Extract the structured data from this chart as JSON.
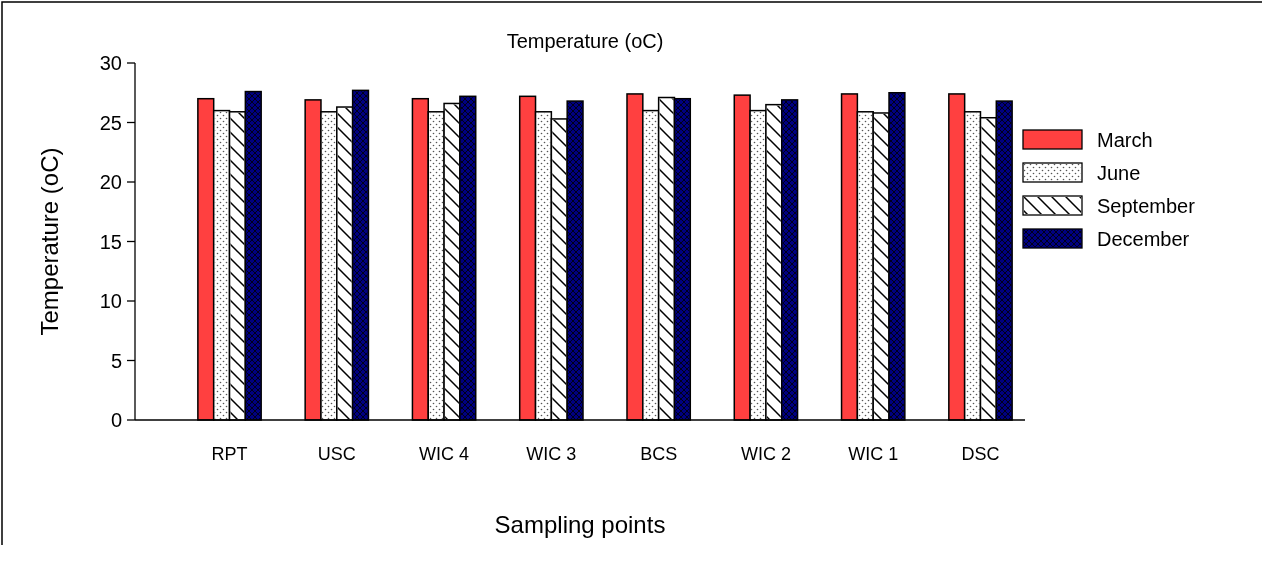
{
  "chart_data": {
    "type": "bar",
    "title": "Temperature (oC)",
    "xlabel": "Sampling points",
    "ylabel": "Temperature (oC)",
    "categories": [
      "RPT",
      "USC",
      "WIC 4",
      "WIC 3",
      "BCS",
      "WIC 2",
      "WIC 1",
      "DSC"
    ],
    "series": [
      {
        "name": "March",
        "color": "#ff4040",
        "values": [
          27.0,
          26.9,
          27.0,
          27.2,
          27.4,
          27.3,
          27.4,
          27.4
        ]
      },
      {
        "name": "June",
        "color": "#ffffff",
        "values": [
          26.0,
          25.9,
          25.9,
          25.9,
          26.0,
          26.0,
          25.9,
          25.9
        ]
      },
      {
        "name": "September",
        "color": "#ffffff",
        "values": [
          25.9,
          26.3,
          26.6,
          25.3,
          27.1,
          26.5,
          25.8,
          25.4
        ]
      },
      {
        "name": "December",
        "color": "#000080",
        "values": [
          27.6,
          27.7,
          27.2,
          26.8,
          27.0,
          26.9,
          27.5,
          26.8
        ]
      }
    ],
    "ylim": [
      0,
      30
    ],
    "yticks": [
      0,
      5,
      10,
      15,
      20,
      25,
      30
    ],
    "grid": false,
    "legend": "right"
  }
}
